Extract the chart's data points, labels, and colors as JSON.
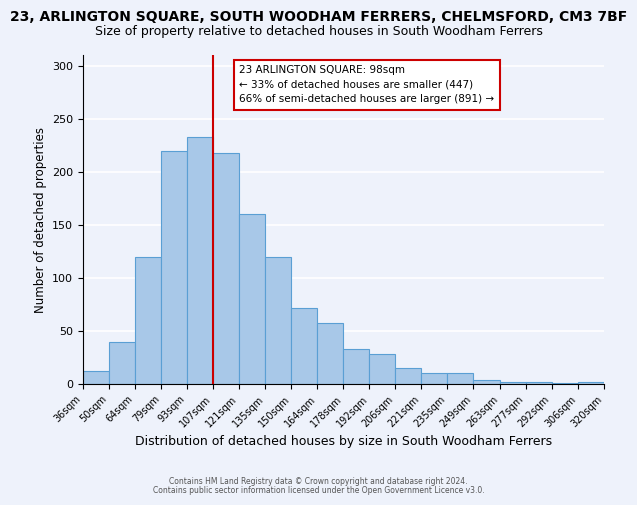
{
  "title": "23, ARLINGTON SQUARE, SOUTH WOODHAM FERRERS, CHELMSFORD, CM3 7BF",
  "subtitle": "Size of property relative to detached houses in South Woodham Ferrers",
  "xlabel": "Distribution of detached houses by size in South Woodham Ferrers",
  "ylabel": "Number of detached properties",
  "bin_edges": [
    "36sqm",
    "50sqm",
    "64sqm",
    "79sqm",
    "93sqm",
    "107sqm",
    "121sqm",
    "135sqm",
    "150sqm",
    "164sqm",
    "178sqm",
    "192sqm",
    "206sqm",
    "221sqm",
    "235sqm",
    "249sqm",
    "263sqm",
    "277sqm",
    "292sqm",
    "306sqm",
    "320sqm"
  ],
  "bar_heights": [
    12,
    40,
    120,
    220,
    233,
    218,
    160,
    120,
    72,
    58,
    33,
    28,
    15,
    11,
    11,
    4,
    2,
    2,
    1,
    2
  ],
  "bar_color": "#a8c8e8",
  "bar_edge_color": "#5a9fd4",
  "vline_color": "#cc0000",
  "annotation_title": "23 ARLINGTON SQUARE: 98sqm",
  "annotation_line1": "← 33% of detached houses are smaller (447)",
  "annotation_line2": "66% of semi-detached houses are larger (891) →",
  "annotation_box_color": "#ffffff",
  "annotation_box_edge": "#cc0000",
  "ylim": [
    0,
    310
  ],
  "yticks": [
    0,
    50,
    100,
    150,
    200,
    250,
    300
  ],
  "footer1": "Contains HM Land Registry data © Crown copyright and database right 2024.",
  "footer2": "Contains public sector information licensed under the Open Government Licence v3.0.",
  "background_color": "#eef2fb",
  "title_fontsize": 10,
  "subtitle_fontsize": 9,
  "ylabel_fontsize": 8.5,
  "xlabel_fontsize": 9
}
